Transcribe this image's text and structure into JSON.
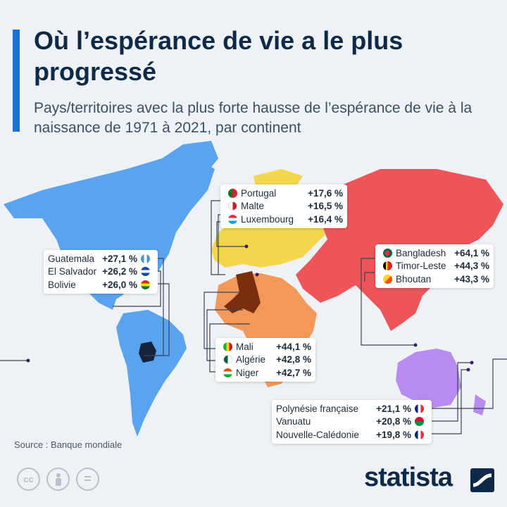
{
  "header": {
    "title": "Où l’espérance de vie a le plus progressé",
    "subtitle": "Pays/territoires avec la plus forte hausse de l’espérance de vie à la naissance de 1971 à 2021, par continent"
  },
  "colors": {
    "americas": "#5aa3ee",
    "europe": "#f3d64b",
    "africa": "#f2995a",
    "asia": "#ef5558",
    "oceania": "#b88bf1",
    "highlight_africa": "#7a2e0e",
    "highlight_americas": "#14233a"
  },
  "regions": {
    "europe": [
      {
        "country": "Portugal",
        "value": "+17,6 %"
      },
      {
        "country": "Malte",
        "value": "+16,5 %"
      },
      {
        "country": "Luxembourg",
        "value": "+16,4 %"
      }
    ],
    "americas": [
      {
        "country": "Guatemala",
        "value": "+27,1 %"
      },
      {
        "country": "El Salvador",
        "value": "+26,2 %"
      },
      {
        "country": "Bolivie",
        "value": "+26,0 %"
      }
    ],
    "asia": [
      {
        "country": "Bangladesh",
        "value": "+64,1 %"
      },
      {
        "country": "Timor-Leste",
        "value": "+44,3 %"
      },
      {
        "country": "Bhoutan",
        "value": "+43,3 %"
      }
    ],
    "africa": [
      {
        "country": "Mali",
        "value": "+44,1 %"
      },
      {
        "country": "Algérie",
        "value": "+42,8 %"
      },
      {
        "country": "Niger",
        "value": "+42,7 %"
      }
    ],
    "oceania": [
      {
        "country": "Polynésie française",
        "value": "+21,1 %"
      },
      {
        "country": "Vanuatu",
        "value": "+20,8 %"
      },
      {
        "country": "Nouvelle-Calédonie",
        "value": "+19,8 %"
      }
    ]
  },
  "footer": {
    "source": "Source : Banque mondiale",
    "logo": "statista",
    "license_icons": [
      "cc",
      "by",
      "nd"
    ],
    "cc_label": "cc",
    "nd_label": "="
  }
}
